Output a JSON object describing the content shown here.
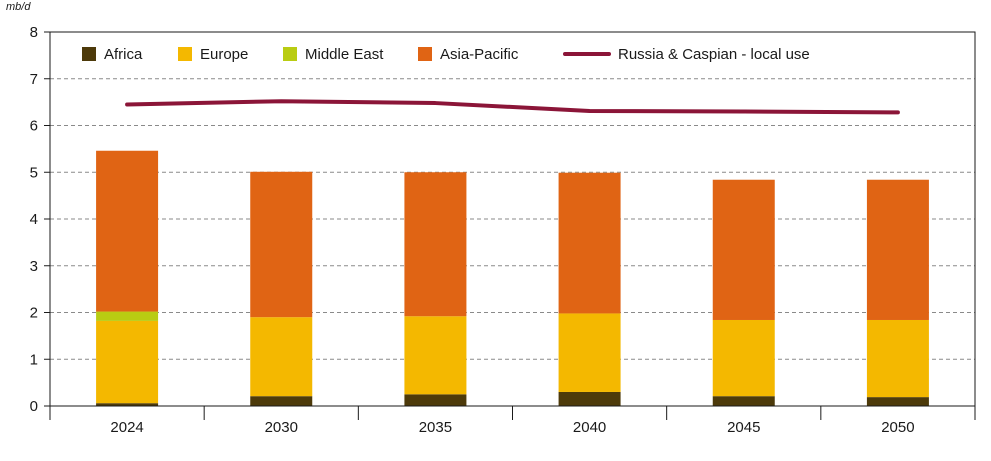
{
  "chart_data": {
    "type": "bar",
    "stacked": true,
    "ylabel": "mb/d",
    "ylim": [
      0,
      8
    ],
    "yticks": [
      "0",
      "1",
      "2",
      "3",
      "4",
      "5",
      "6",
      "7",
      "8"
    ],
    "categories": [
      "2024",
      "2030",
      "2035",
      "2040",
      "2045",
      "2050"
    ],
    "grid": "horizontal dashed",
    "legend_position": "top",
    "series": [
      {
        "name": "Africa",
        "type": "bar",
        "color": "#4d3a0a",
        "values": [
          0.06,
          0.21,
          0.25,
          0.3,
          0.21,
          0.19
        ]
      },
      {
        "name": "Europe",
        "type": "bar",
        "color": "#f4b800",
        "values": [
          1.76,
          1.69,
          1.67,
          1.68,
          1.63,
          1.65
        ]
      },
      {
        "name": "Middle East",
        "type": "bar",
        "color": "#b9cc12",
        "values": [
          0.2,
          0.0,
          0.0,
          0.0,
          0.0,
          0.0
        ]
      },
      {
        "name": "Asia-Pacific",
        "type": "bar",
        "color": "#e06414",
        "values": [
          3.44,
          3.11,
          3.08,
          3.01,
          3.0,
          3.0
        ]
      },
      {
        "name": "Russia & Caspian - local use",
        "type": "line",
        "color": "#8b1538",
        "values": [
          6.45,
          6.52,
          6.48,
          6.31,
          6.3,
          6.28
        ]
      }
    ]
  }
}
